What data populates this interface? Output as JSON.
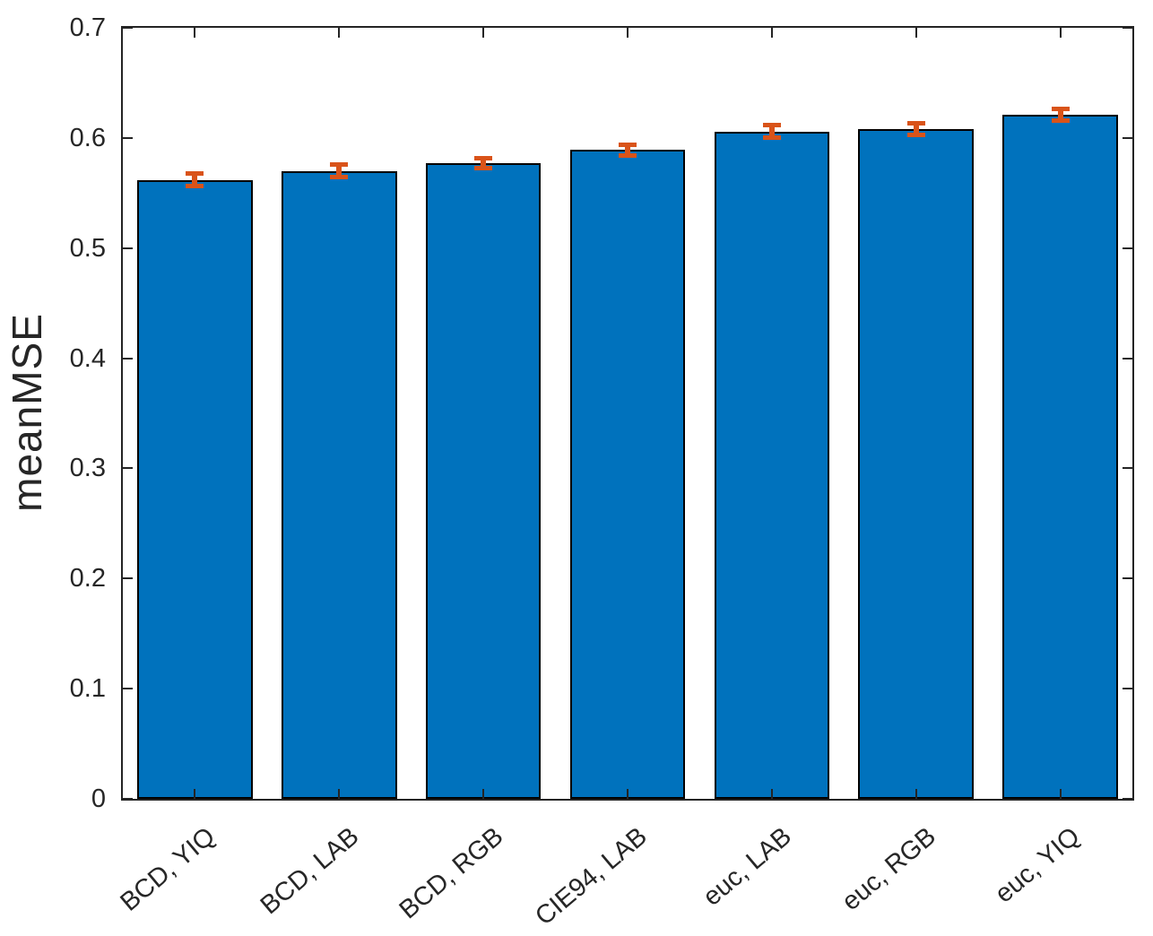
{
  "chart_data": {
    "type": "bar",
    "title": "",
    "xlabel": "",
    "ylabel": "meanMSE",
    "categories": [
      "BCD, YIQ",
      "BCD, LAB",
      "BCD, RGB",
      "CIE94, LAB",
      "euc, LAB",
      "euc, RGB",
      "euc, YIQ"
    ],
    "values": [
      0.562,
      0.57,
      0.577,
      0.589,
      0.606,
      0.608,
      0.621
    ],
    "errors": [
      0.006,
      0.006,
      0.005,
      0.005,
      0.006,
      0.006,
      0.006
    ],
    "ylim": [
      0,
      0.7
    ],
    "yticks": [
      0,
      0.1,
      0.2,
      0.3,
      0.4,
      0.5,
      0.6,
      0.7
    ],
    "ytick_labels": [
      "0",
      "0.1",
      "0.2",
      "0.3",
      "0.4",
      "0.5",
      "0.6",
      "0.7"
    ],
    "xtick_angle_deg": 40,
    "bar_width_fraction": 0.8,
    "grid": false,
    "legend": "none",
    "error_bar_style": "vertical line with caps",
    "colors": {
      "bar_fill": "#0072BD",
      "bar_edge": "#000000",
      "error_bar": "#D95319",
      "axis": "#262626",
      "background": "#ffffff"
    }
  }
}
